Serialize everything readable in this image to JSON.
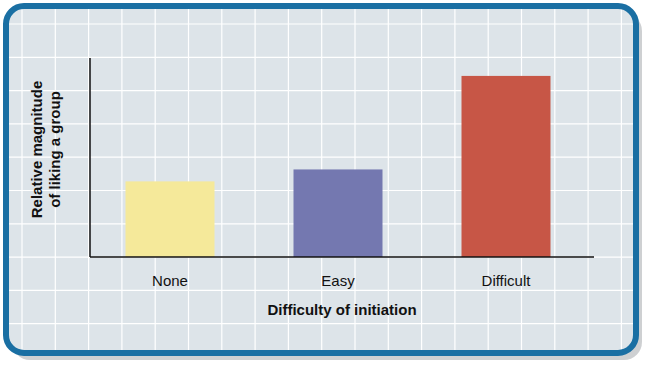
{
  "chart_data": {
    "type": "bar",
    "x_label": "Difficulty of initiation",
    "y_label": "Relative magnitude of liking a group",
    "categories": [
      "None",
      "Easy",
      "Difficult"
    ],
    "values": [
      3.8,
      4.4,
      9.1
    ],
    "colors": [
      "#f5e99a",
      "#7478b0",
      "#c75646"
    ],
    "ylim": [
      0,
      10
    ],
    "tick_labels": "x"
  }
}
